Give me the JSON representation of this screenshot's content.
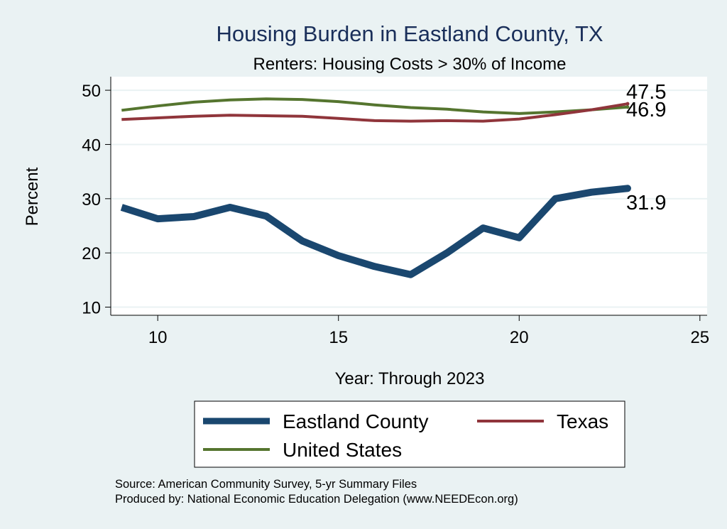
{
  "chart_data": {
    "type": "line",
    "title": "Housing Burden in Eastland County, TX",
    "subtitle": "Renters: Housing Costs > 30% of Income",
    "xlabel": "Year: Through 2023",
    "ylabel": "Percent",
    "xlim": [
      8.7,
      25.2
    ],
    "ylim": [
      8.5,
      52.5
    ],
    "xticks": [
      10,
      15,
      20,
      25
    ],
    "yticks": [
      10,
      20,
      30,
      40,
      50
    ],
    "grid": true,
    "legend_position": "bottom",
    "series": [
      {
        "name": "Eastland County",
        "color": "#1a476f",
        "x": [
          9,
          10,
          11,
          12,
          13,
          14,
          15,
          16,
          17,
          18,
          19,
          20,
          21,
          22,
          23
        ],
        "values": [
          28.4,
          26.3,
          26.7,
          28.4,
          26.8,
          22.2,
          19.5,
          17.5,
          16.0,
          20.0,
          24.6,
          22.8,
          30.0,
          31.2,
          31.9
        ],
        "end_label": "31.9"
      },
      {
        "name": "Texas",
        "color": "#90353b",
        "x": [
          9,
          10,
          11,
          12,
          13,
          14,
          15,
          16,
          17,
          18,
          19,
          20,
          21,
          22,
          23
        ],
        "values": [
          44.6,
          44.9,
          45.2,
          45.4,
          45.3,
          45.2,
          44.8,
          44.4,
          44.3,
          44.4,
          44.3,
          44.7,
          45.5,
          46.4,
          47.5
        ],
        "end_label": "47.5"
      },
      {
        "name": "United States",
        "color": "#55752f",
        "x": [
          9,
          10,
          11,
          12,
          13,
          14,
          15,
          16,
          17,
          18,
          19,
          20,
          21,
          22,
          23
        ],
        "values": [
          46.3,
          47.1,
          47.8,
          48.2,
          48.4,
          48.3,
          47.9,
          47.3,
          46.8,
          46.5,
          46.0,
          45.7,
          46.0,
          46.4,
          46.9
        ],
        "end_label": "46.9"
      }
    ],
    "notes": [
      "Source: American Community Survey, 5-yr Summary Files",
      "Produced by: National Economic Education Delegation (www.NEEDEcon.org)"
    ]
  }
}
